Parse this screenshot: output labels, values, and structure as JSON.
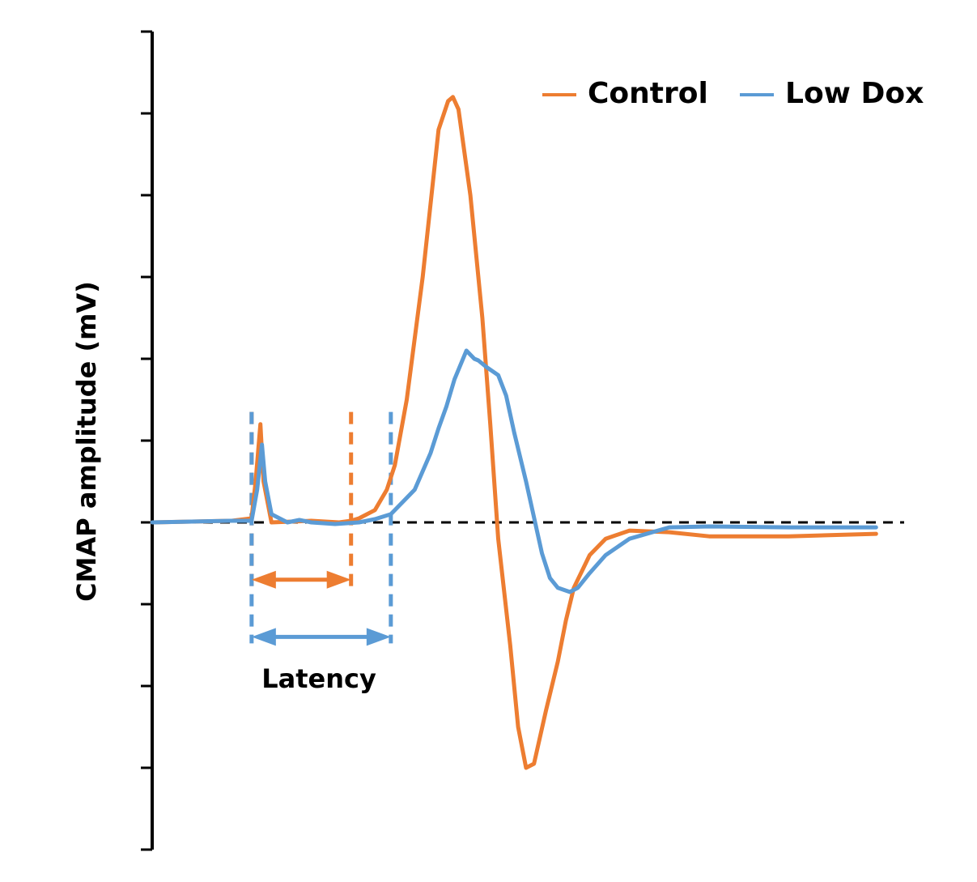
{
  "chart_data": {
    "type": "line",
    "title": "",
    "xlabel": "",
    "ylabel": "CMAP amplitude (mV)",
    "xlim": [
      0,
      9.3
    ],
    "ylim": [
      -4,
      6
    ],
    "y_ticks": [
      -4,
      -3,
      -2,
      -1,
      0,
      1,
      2,
      3,
      4,
      5,
      6
    ],
    "tick_labels_shown": false,
    "grid": false,
    "baseline": {
      "y": 0,
      "style": "dashed",
      "color": "#000000"
    },
    "legend": {
      "position": "top-right",
      "orientation": "horizontal"
    },
    "series": [
      {
        "name": "Control",
        "color": "#ED7D31",
        "points": [
          [
            0,
            0
          ],
          [
            1,
            0.02
          ],
          [
            1.25,
            0.05
          ],
          [
            1.3,
            0.5
          ],
          [
            1.36,
            1.2
          ],
          [
            1.4,
            0.5
          ],
          [
            1.5,
            0.0
          ],
          [
            2.0,
            0.02
          ],
          [
            2.35,
            0.0
          ],
          [
            2.5,
            0.02
          ],
          [
            2.6,
            0.05
          ],
          [
            2.8,
            0.15
          ],
          [
            2.95,
            0.4
          ],
          [
            3.05,
            0.7
          ],
          [
            3.2,
            1.5
          ],
          [
            3.4,
            3.0
          ],
          [
            3.6,
            4.8
          ],
          [
            3.72,
            5.15
          ],
          [
            3.78,
            5.2
          ],
          [
            3.85,
            5.05
          ],
          [
            4.0,
            4.0
          ],
          [
            4.15,
            2.5
          ],
          [
            4.25,
            1.2
          ],
          [
            4.35,
            -0.2
          ],
          [
            4.5,
            -1.5
          ],
          [
            4.6,
            -2.5
          ],
          [
            4.7,
            -3.0
          ],
          [
            4.8,
            -2.95
          ],
          [
            4.95,
            -2.3
          ],
          [
            5.1,
            -1.7
          ],
          [
            5.2,
            -1.2
          ],
          [
            5.3,
            -0.8
          ],
          [
            5.5,
            -0.4
          ],
          [
            5.7,
            -0.2
          ],
          [
            6.0,
            -0.1
          ],
          [
            6.5,
            -0.12
          ],
          [
            7.0,
            -0.17
          ],
          [
            8.0,
            -0.17
          ],
          [
            9.1,
            -0.14
          ]
        ]
      },
      {
        "name": "Low Dox",
        "color": "#5B9BD5",
        "points": [
          [
            0,
            0
          ],
          [
            1.0,
            0.02
          ],
          [
            1.25,
            0.02
          ],
          [
            1.32,
            0.4
          ],
          [
            1.38,
            0.95
          ],
          [
            1.42,
            0.5
          ],
          [
            1.5,
            0.1
          ],
          [
            1.7,
            0.0
          ],
          [
            1.85,
            0.03
          ],
          [
            2.0,
            0.0
          ],
          [
            2.3,
            -0.02
          ],
          [
            2.6,
            0.0
          ],
          [
            2.8,
            0.04
          ],
          [
            3.0,
            0.1
          ],
          [
            3.15,
            0.25
          ],
          [
            3.3,
            0.4
          ],
          [
            3.5,
            0.85
          ],
          [
            3.6,
            1.15
          ],
          [
            3.7,
            1.42
          ],
          [
            3.8,
            1.75
          ],
          [
            3.95,
            2.1
          ],
          [
            4.05,
            2.0
          ],
          [
            4.1,
            1.98
          ],
          [
            4.2,
            1.9
          ],
          [
            4.35,
            1.8
          ],
          [
            4.45,
            1.55
          ],
          [
            4.55,
            1.1
          ],
          [
            4.7,
            0.5
          ],
          [
            4.9,
            -0.38
          ],
          [
            5.0,
            -0.68
          ],
          [
            5.1,
            -0.8
          ],
          [
            5.25,
            -0.85
          ],
          [
            5.35,
            -0.8
          ],
          [
            5.5,
            -0.62
          ],
          [
            5.7,
            -0.4
          ],
          [
            6.0,
            -0.2
          ],
          [
            6.5,
            -0.06
          ],
          [
            7.0,
            -0.05
          ],
          [
            8.0,
            -0.06
          ],
          [
            9.1,
            -0.06
          ]
        ]
      }
    ],
    "annotations": [
      {
        "text": "Latency",
        "arrows": [
          {
            "series": "Control",
            "from_x": 1.25,
            "to_x": 2.5,
            "y": -0.7
          },
          {
            "series": "Low Dox",
            "from_x": 1.25,
            "to_x": 3.0,
            "y": -1.4
          }
        ],
        "markers": [
          {
            "series": "Control",
            "x": 1.25
          },
          {
            "series": "Control",
            "x": 2.5
          },
          {
            "series": "Low Dox",
            "x": 1.25
          },
          {
            "series": "Low Dox",
            "x": 3.0
          }
        ]
      }
    ]
  }
}
